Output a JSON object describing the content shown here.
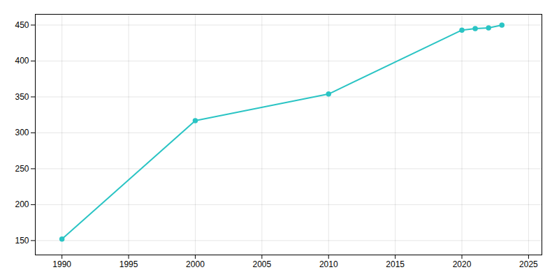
{
  "chart_data": {
    "type": "line",
    "x": [
      1990,
      2000,
      2010,
      2020,
      2021,
      2022,
      2023
    ],
    "values": [
      152,
      317,
      354,
      443,
      445,
      446,
      450
    ],
    "color": "#2ac4c4",
    "marker": "circle",
    "xlim": [
      1988,
      2026
    ],
    "ylim": [
      130,
      465
    ],
    "xticks": [
      1990,
      1995,
      2000,
      2005,
      2010,
      2015,
      2020,
      2025
    ],
    "yticks": [
      150,
      200,
      250,
      300,
      350,
      400,
      450
    ],
    "grid": true
  }
}
